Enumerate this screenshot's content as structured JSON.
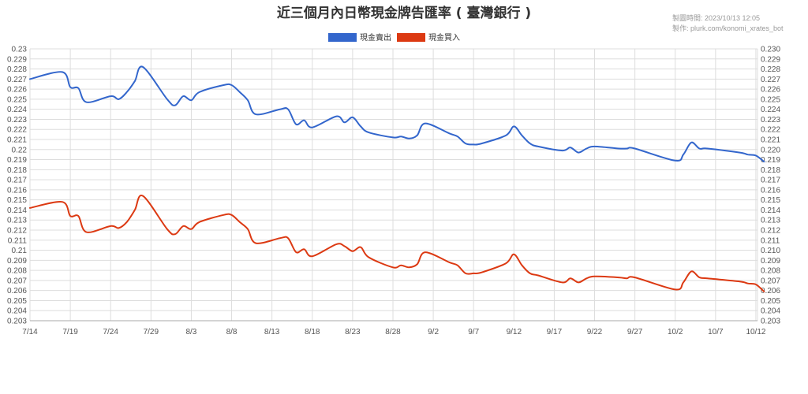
{
  "chart_data": {
    "type": "line",
    "title": "近三個月內日幣現金牌告匯率 ( 臺灣銀行 )",
    "meta": {
      "made_time": "製圖時間: 2023/10/13 12:05",
      "made_by": "製作: plurk.com/konomi_xrates_bot"
    },
    "legend_position": "top",
    "grid": true,
    "ylim": [
      0.203,
      0.23
    ],
    "yticks_left": [
      "0.23",
      "0.229",
      "0.228",
      "0.227",
      "0.226",
      "0.225",
      "0.224",
      "0.223",
      "0.222",
      "0.221",
      "0.22",
      "0.219",
      "0.218",
      "0.217",
      "0.216",
      "0.215",
      "0.214",
      "0.213",
      "0.212",
      "0.211",
      "0.21",
      "0.209",
      "0.208",
      "0.207",
      "0.206",
      "0.205",
      "0.204",
      "0.203"
    ],
    "yticks_right": [
      "0.230",
      "0.229",
      "0.228",
      "0.227",
      "0.226",
      "0.225",
      "0.224",
      "0.223",
      "0.222",
      "0.221",
      "0.220",
      "0.219",
      "0.218",
      "0.217",
      "0.216",
      "0.215",
      "0.214",
      "0.213",
      "0.212",
      "0.211",
      "0.210",
      "0.209",
      "0.208",
      "0.207",
      "0.206",
      "0.205",
      "0.204",
      "0.203"
    ],
    "xticks": [
      "7/14",
      "7/19",
      "7/24",
      "7/29",
      "8/3",
      "8/8",
      "8/13",
      "8/18",
      "8/23",
      "8/28",
      "9/2",
      "9/7",
      "9/12",
      "9/17",
      "9/22",
      "9/27",
      "10/2",
      "10/7",
      "10/12"
    ],
    "x": [
      "7/14",
      "7/18",
      "7/19",
      "7/20",
      "7/21",
      "7/24",
      "7/25",
      "7/26",
      "7/27",
      "7/28",
      "7/31",
      "8/1",
      "8/2",
      "8/3",
      "8/4",
      "8/7",
      "8/8",
      "8/9",
      "8/10",
      "8/11",
      "8/14",
      "8/15",
      "8/16",
      "8/17",
      "8/18",
      "8/21",
      "8/22",
      "8/23",
      "8/24",
      "8/25",
      "8/28",
      "8/29",
      "8/30",
      "8/31",
      "9/1",
      "9/4",
      "9/5",
      "9/6",
      "9/7",
      "9/8",
      "9/11",
      "9/12",
      "9/13",
      "9/14",
      "9/15",
      "9/18",
      "9/19",
      "9/20",
      "9/21",
      "9/22",
      "9/25",
      "9/26",
      "9/27",
      "10/2",
      "10/3",
      "10/4",
      "10/5",
      "10/6",
      "10/10",
      "10/11",
      "10/12",
      "10/13"
    ],
    "series": [
      {
        "name": "現金賣出",
        "color": "#3366cc",
        "values": [
          0.227,
          0.2277,
          0.2262,
          0.2261,
          0.2247,
          0.2253,
          0.225,
          0.2257,
          0.2268,
          0.2282,
          0.225,
          0.2244,
          0.2253,
          0.2249,
          0.2257,
          0.2264,
          0.2264,
          0.2257,
          0.2249,
          0.2235,
          0.224,
          0.224,
          0.2225,
          0.2229,
          0.2222,
          0.2233,
          0.2227,
          0.2232,
          0.2223,
          0.2217,
          0.2212,
          0.2213,
          0.2211,
          0.2214,
          0.2226,
          0.2216,
          0.2213,
          0.2206,
          0.2205,
          0.2206,
          0.2214,
          0.2223,
          0.2214,
          0.2206,
          0.2203,
          0.2199,
          0.2202,
          0.2197,
          0.2201,
          0.2203,
          0.2201,
          0.2201,
          0.2201,
          0.2189,
          0.2195,
          0.2207,
          0.2201,
          0.2201,
          0.2197,
          0.2195,
          0.2194,
          0.2188
        ]
      },
      {
        "name": "現金買入",
        "color": "#dc3912",
        "values": [
          0.2142,
          0.2148,
          0.2134,
          0.2134,
          0.2118,
          0.2124,
          0.2122,
          0.2128,
          0.214,
          0.2154,
          0.2121,
          0.2116,
          0.2124,
          0.2121,
          0.2128,
          0.2135,
          0.2135,
          0.2128,
          0.2121,
          0.2107,
          0.2112,
          0.2112,
          0.2098,
          0.2101,
          0.2094,
          0.2106,
          0.2104,
          0.2099,
          0.2103,
          0.2093,
          0.2083,
          0.2085,
          0.2083,
          0.2086,
          0.2098,
          0.2088,
          0.2085,
          0.2077,
          0.2077,
          0.2078,
          0.2087,
          0.2096,
          0.2085,
          0.2077,
          0.2075,
          0.2068,
          0.2072,
          0.2068,
          0.2072,
          0.2074,
          0.2073,
          0.2072,
          0.2073,
          0.2061,
          0.2068,
          0.2079,
          0.2073,
          0.2072,
          0.2069,
          0.2067,
          0.2066,
          0.2059
        ]
      }
    ]
  }
}
